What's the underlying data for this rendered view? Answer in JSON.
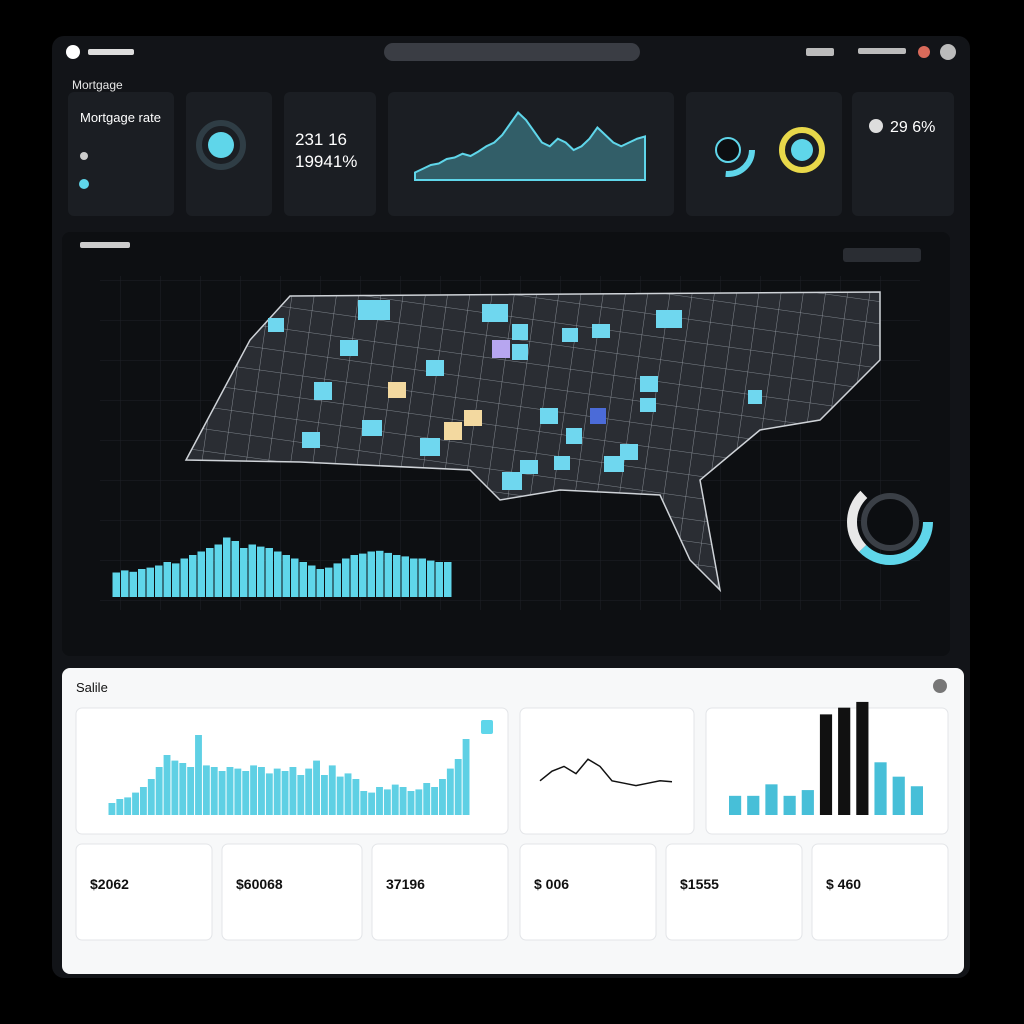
{
  "header": {
    "section": "Mortgage"
  },
  "cards": {
    "rate_title": "Mortgage rate",
    "stat_a": "231 16",
    "stat_b": "19941%",
    "stat_c": "29 6%"
  },
  "area_chart": {
    "type": "area",
    "values": [
      10,
      15,
      20,
      22,
      28,
      30,
      35,
      32,
      38,
      45,
      50,
      60,
      75,
      90,
      80,
      65,
      50,
      45,
      55,
      50,
      40,
      45,
      55,
      70,
      60,
      50,
      45,
      50,
      55,
      58
    ],
    "ylim": [
      0,
      100
    ],
    "color": "#5fd6ea"
  },
  "map_histogram": {
    "type": "bar",
    "values": [
      35,
      38,
      36,
      40,
      42,
      45,
      50,
      48,
      55,
      60,
      65,
      70,
      75,
      85,
      80,
      70,
      75,
      72,
      70,
      65,
      60,
      55,
      50,
      45,
      40,
      42,
      48,
      55,
      60,
      62,
      65,
      66,
      63,
      60,
      58,
      55,
      55,
      52,
      50,
      50
    ],
    "ylim": [
      0,
      100
    ],
    "color": "#5fd6ea"
  },
  "panel": {
    "title": "Salile"
  },
  "bar_chart": {
    "type": "bar",
    "values": [
      15,
      20,
      22,
      28,
      35,
      45,
      60,
      75,
      68,
      65,
      60,
      100,
      62,
      60,
      55,
      60,
      58,
      55,
      62,
      60,
      52,
      58,
      55,
      60,
      50,
      58,
      68,
      50,
      62,
      48,
      52,
      45,
      30,
      28,
      35,
      32,
      38,
      35,
      30,
      32,
      40,
      35,
      45,
      58,
      70,
      95
    ],
    "ylim": [
      0,
      100
    ],
    "color": "#5fd0e4"
  },
  "line_chart": {
    "type": "line",
    "values": [
      40,
      60,
      70,
      55,
      85,
      70,
      40,
      35,
      30,
      35,
      40,
      38
    ],
    "ylim": [
      0,
      100
    ],
    "color": "#111111"
  },
  "mixed_bars": {
    "type": "bar",
    "values": [
      20,
      20,
      32,
      20,
      26,
      105,
      112,
      118,
      55,
      40,
      30
    ],
    "colors": [
      "#47bfd8",
      "#47bfd8",
      "#47bfd8",
      "#47bfd8",
      "#47bfd8",
      "#111111",
      "#111111",
      "#111111",
      "#47bfd8",
      "#47bfd8",
      "#47bfd8"
    ],
    "ylim": [
      0,
      120
    ]
  },
  "kpis": [
    "$2062",
    "$60068",
    "37196",
    "$ 006",
    "$1555",
    "$ 460"
  ]
}
